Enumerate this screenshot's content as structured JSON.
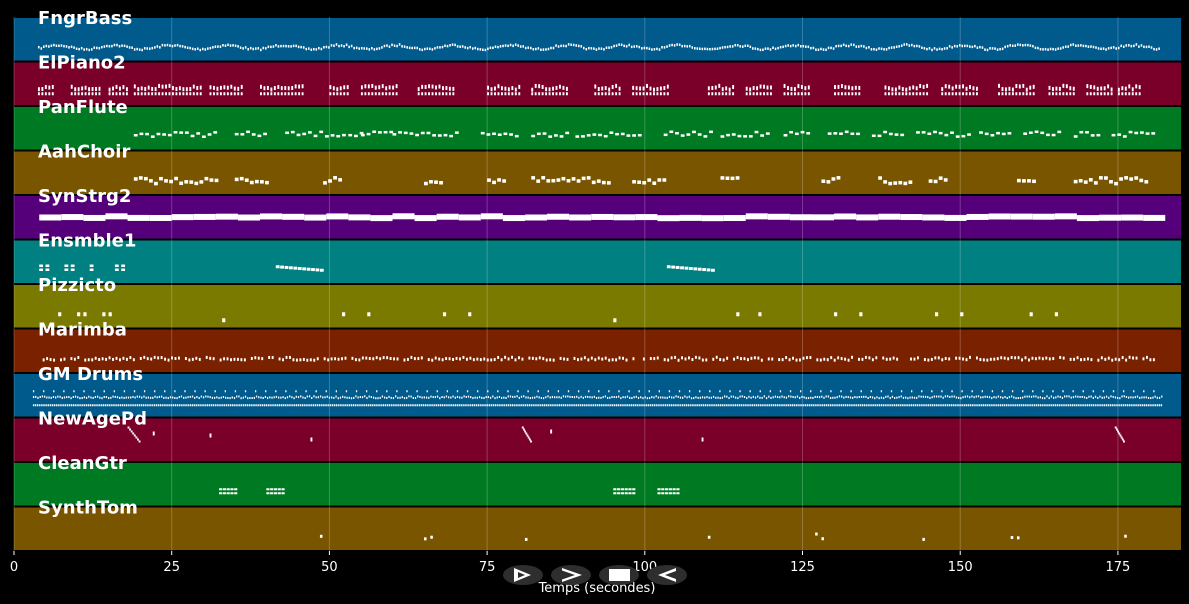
{
  "chart_data": {
    "type": "piano-roll",
    "title": "",
    "xlabel": "Temps (secondes)",
    "ylabel": "",
    "xlim": [
      0,
      185
    ],
    "xticks": [
      0,
      25,
      50,
      75,
      100,
      125,
      150,
      175
    ],
    "grid": true,
    "tracks": [
      {
        "name": "FngrBass",
        "color": "#005a8c",
        "pattern": "dense_bass",
        "note_range": [
          3.8,
          181.5
        ]
      },
      {
        "name": "ElPiano2",
        "color": "#7a002a",
        "pattern": "chords",
        "note_range": [
          3.8,
          178.5
        ]
      },
      {
        "name": "PanFlute",
        "color": "#007a22",
        "pattern": "melody",
        "note_range": [
          19,
          181
        ]
      },
      {
        "name": "AahChoir",
        "color": "#7a5500",
        "pattern": "phrases",
        "note_range": [
          19,
          180
        ]
      },
      {
        "name": "SynStrg2",
        "color": "#55007a",
        "pattern": "sustained",
        "note_range": [
          4,
          182
        ]
      },
      {
        "name": "Ensmble1",
        "color": "#008080",
        "pattern": "sparse",
        "note_range": [
          4,
          110
        ]
      },
      {
        "name": "Pizzicto",
        "color": "#7a7a00",
        "pattern": "pluck",
        "note_range": [
          6,
          166
        ]
      },
      {
        "name": "Marimba",
        "color": "#7a2200",
        "pattern": "marimba",
        "note_range": [
          4,
          181
        ]
      },
      {
        "name": "GM Drums",
        "color": "#005a8c",
        "pattern": "drums",
        "note_range": [
          3,
          182
        ]
      },
      {
        "name": "NewAgePd",
        "color": "#7a002a",
        "pattern": "pads",
        "note_range": [
          17,
          176
        ]
      },
      {
        "name": "CleanGtr",
        "color": "#007a22",
        "pattern": "guitar",
        "note_range": [
          32,
          105
        ]
      },
      {
        "name": "SynthTom",
        "color": "#7a5500",
        "pattern": "toms",
        "note_range": [
          48,
          176
        ]
      }
    ]
  },
  "controls": {
    "play_icon": "play-icon",
    "forward_icon": "forward-icon",
    "stop_icon": "stop-icon",
    "back_icon": "back-icon"
  }
}
